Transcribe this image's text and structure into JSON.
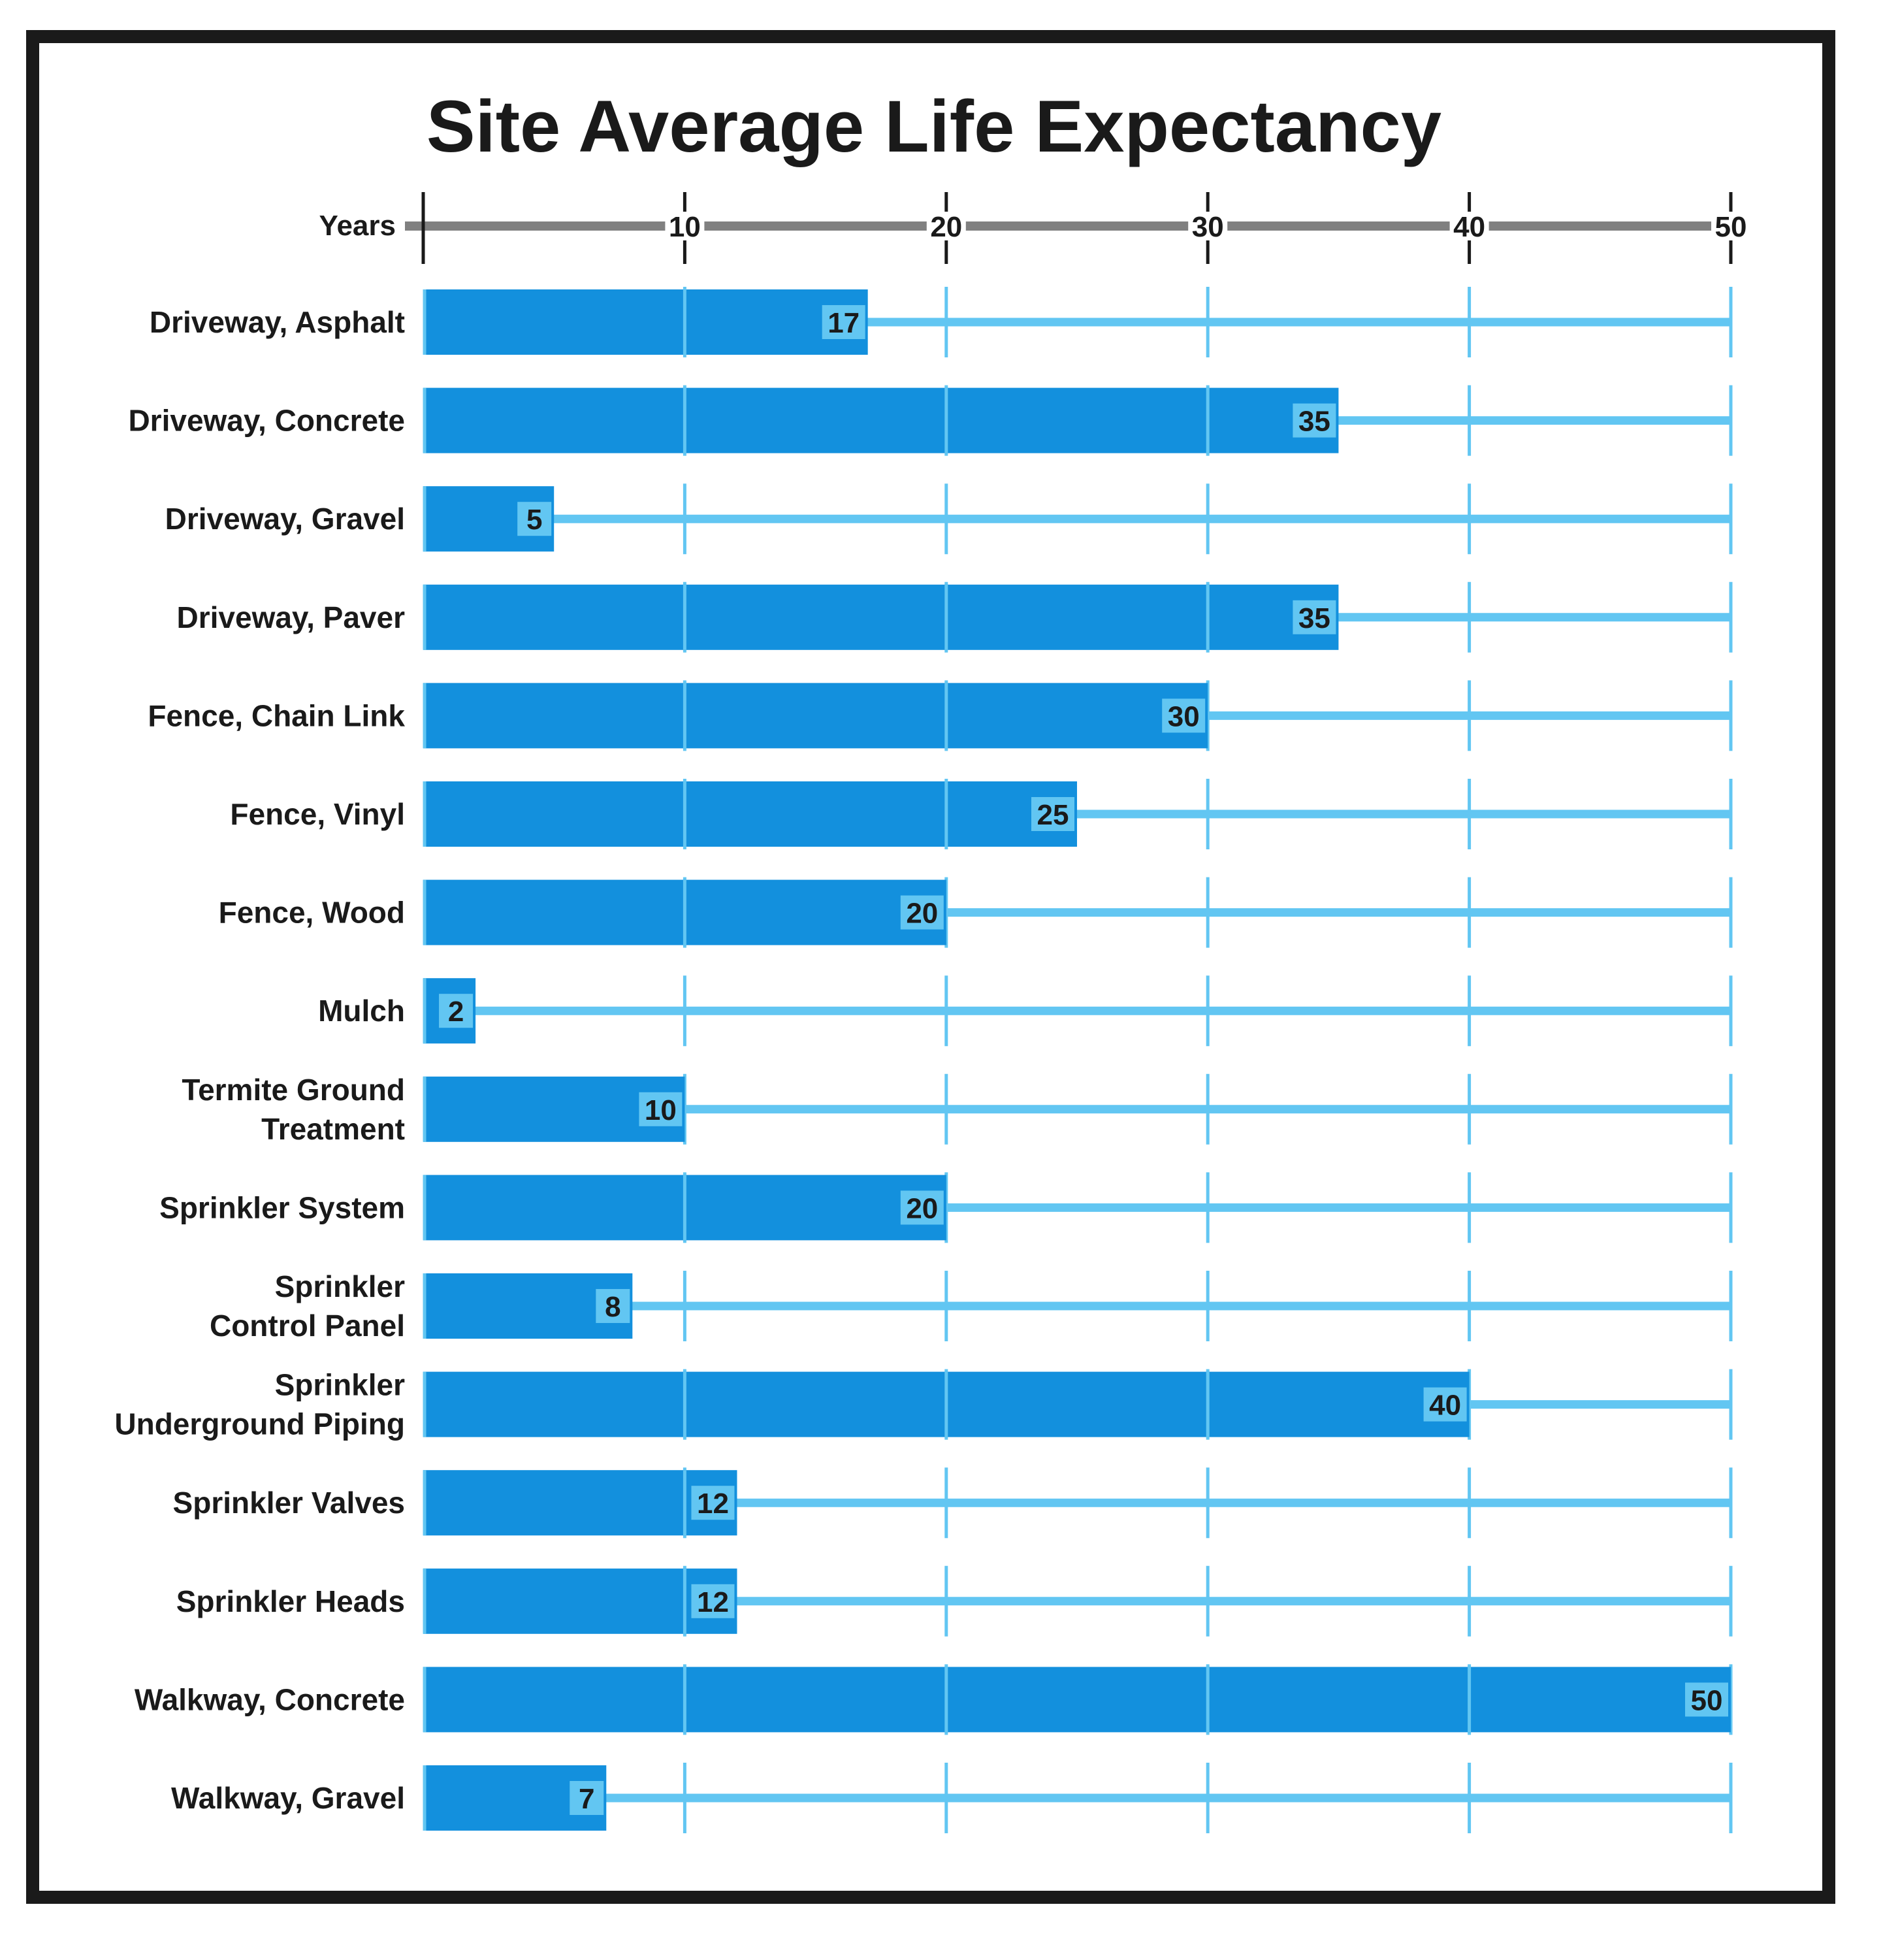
{
  "chart_data": {
    "type": "bar",
    "orientation": "horizontal",
    "title": "Site Average Life Expectancy",
    "axis_label": "Years",
    "xlim": [
      0,
      50
    ],
    "ticks": [
      "10",
      "20",
      "30",
      "40",
      "50"
    ],
    "tick_values": [
      10,
      20,
      30,
      40,
      50
    ],
    "grid": true,
    "categories": [
      [
        "Driveway, Asphalt"
      ],
      [
        "Driveway, Concrete"
      ],
      [
        "Driveway, Gravel"
      ],
      [
        "Driveway, Paver"
      ],
      [
        "Fence, Chain Link"
      ],
      [
        "Fence, Vinyl"
      ],
      [
        "Fence, Wood"
      ],
      [
        "Mulch"
      ],
      [
        "Termite Ground",
        "Treatment"
      ],
      [
        "Sprinkler System"
      ],
      [
        "Sprinkler",
        "Control Panel"
      ],
      [
        "Sprinkler",
        "Underground Piping"
      ],
      [
        "Sprinkler Valves"
      ],
      [
        "Sprinkler Heads"
      ],
      [
        "Walkway, Concrete"
      ],
      [
        "Walkway, Gravel"
      ]
    ],
    "values": [
      17,
      35,
      5,
      35,
      30,
      25,
      20,
      2,
      10,
      20,
      8,
      40,
      12,
      12,
      50,
      7
    ],
    "value_labels": [
      "17",
      "35",
      "5",
      "35",
      "30",
      "25",
      "20",
      "2",
      "10",
      "20",
      "8",
      "40",
      "12",
      "12",
      "50",
      "7"
    ]
  },
  "colors": {
    "bar": "#1390dd",
    "track": "#62c6f2",
    "label_box": "#62c6f2",
    "axis": "#808080",
    "frame": "#1a1a1a",
    "text": "#1a1a1a"
  }
}
